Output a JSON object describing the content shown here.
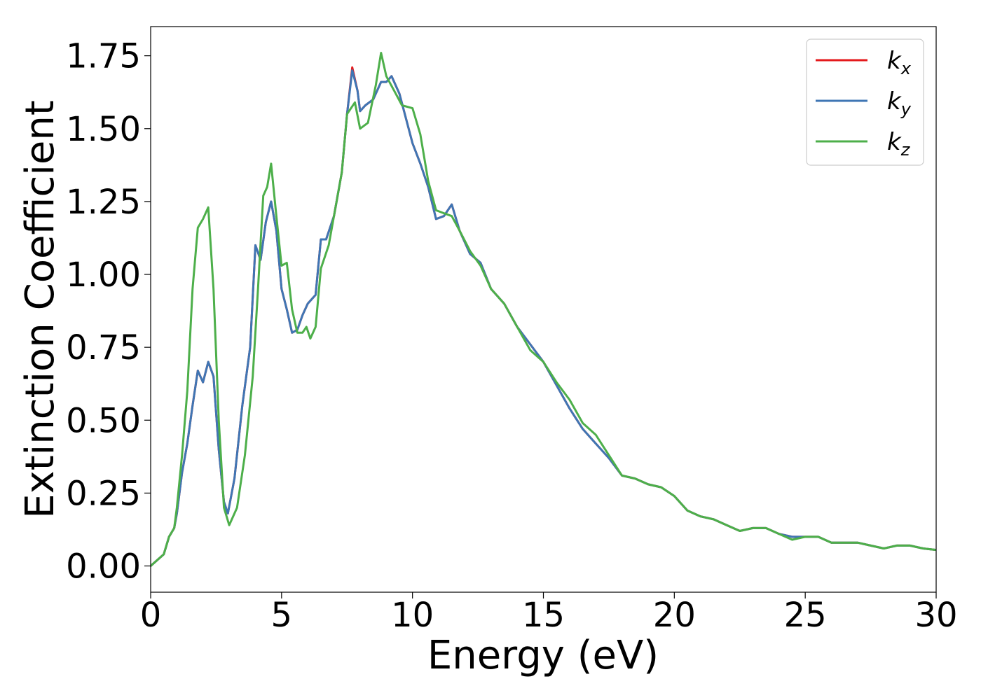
{
  "chart_data": {
    "type": "line",
    "xlabel": "Energy (eV)",
    "ylabel": "Extinction Coefficient",
    "xlim": [
      0,
      30
    ],
    "ylim": [
      -0.09,
      1.85
    ],
    "xticks": [
      0,
      5,
      10,
      15,
      20,
      25,
      30
    ],
    "xtick_labels": [
      "0",
      "5",
      "10",
      "15",
      "20",
      "25",
      "30"
    ],
    "yticks": [
      0,
      0.25,
      0.5,
      0.75,
      1.0,
      1.25,
      1.5,
      1.75
    ],
    "ytick_labels": [
      "0.00",
      "0.25",
      "0.50",
      "0.75",
      "1.00",
      "1.25",
      "1.50",
      "1.75"
    ],
    "grid": false,
    "legend_position": "top-right",
    "series": [
      {
        "name": "k",
        "subscript": "x",
        "color": "#e41a1c",
        "x": [
          0,
          0.5,
          0.7,
          0.9,
          1.0,
          1.2,
          1.4,
          1.6,
          1.8,
          2.0,
          2.2,
          2.4,
          2.6,
          2.8,
          2.95,
          3.2,
          3.5,
          3.8,
          4.0,
          4.2,
          4.4,
          4.6,
          4.8,
          5.0,
          5.2,
          5.4,
          5.6,
          5.8,
          6.0,
          6.3,
          6.5,
          6.7,
          7.0,
          7.3,
          7.5,
          7.7,
          7.9,
          8.0,
          8.2,
          8.5,
          8.8,
          9.0,
          9.2,
          9.5,
          10.0,
          10.3,
          10.6,
          10.9,
          11.2,
          11.5,
          11.8,
          12.2,
          12.6,
          13.0,
          13.5,
          14.0,
          14.5,
          15.0,
          15.5,
          16.0,
          16.5,
          17.0,
          17.5,
          18.0,
          18.5,
          19.0,
          19.5,
          20.0,
          20.5,
          21.0,
          21.5,
          22.0,
          22.5,
          23.0,
          23.5,
          24.0,
          24.5,
          25.0,
          25.5,
          26.0,
          26.5,
          27.0,
          27.5,
          28.0,
          28.5,
          29.0,
          29.5,
          30.0
        ],
        "y": [
          0.0,
          0.04,
          0.1,
          0.13,
          0.18,
          0.32,
          0.42,
          0.55,
          0.67,
          0.63,
          0.7,
          0.65,
          0.4,
          0.22,
          0.18,
          0.3,
          0.55,
          0.75,
          1.1,
          1.05,
          1.18,
          1.25,
          1.15,
          0.95,
          0.88,
          0.8,
          0.81,
          0.86,
          0.9,
          0.93,
          1.12,
          1.12,
          1.2,
          1.35,
          1.55,
          1.71,
          1.63,
          1.56,
          1.58,
          1.6,
          1.66,
          1.66,
          1.68,
          1.62,
          1.45,
          1.38,
          1.3,
          1.19,
          1.2,
          1.24,
          1.15,
          1.07,
          1.04,
          0.95,
          0.9,
          0.82,
          0.76,
          0.7,
          0.62,
          0.54,
          0.47,
          0.42,
          0.37,
          0.31,
          0.3,
          0.28,
          0.27,
          0.24,
          0.19,
          0.17,
          0.16,
          0.14,
          0.12,
          0.13,
          0.13,
          0.11,
          0.1,
          0.1,
          0.1,
          0.08,
          0.08,
          0.08,
          0.07,
          0.06,
          0.07,
          0.07,
          0.06,
          0.055
        ]
      },
      {
        "name": "k",
        "subscript": "y",
        "color": "#3f76b4",
        "x": [
          0,
          0.5,
          0.7,
          0.9,
          1.0,
          1.2,
          1.4,
          1.6,
          1.8,
          2.0,
          2.2,
          2.4,
          2.6,
          2.8,
          2.95,
          3.2,
          3.5,
          3.8,
          4.0,
          4.2,
          4.4,
          4.6,
          4.8,
          5.0,
          5.2,
          5.4,
          5.6,
          5.8,
          6.0,
          6.3,
          6.5,
          6.7,
          7.0,
          7.3,
          7.5,
          7.7,
          7.9,
          8.0,
          8.2,
          8.5,
          8.8,
          9.0,
          9.2,
          9.5,
          10.0,
          10.3,
          10.6,
          10.9,
          11.2,
          11.5,
          11.8,
          12.2,
          12.6,
          13.0,
          13.5,
          14.0,
          14.5,
          15.0,
          15.5,
          16.0,
          16.5,
          17.0,
          17.5,
          18.0,
          18.5,
          19.0,
          19.5,
          20.0,
          20.5,
          21.0,
          21.5,
          22.0,
          22.5,
          23.0,
          23.5,
          24.0,
          24.5,
          25.0,
          25.5,
          26.0,
          26.5,
          27.0,
          27.5,
          28.0,
          28.5,
          29.0,
          29.5,
          30.0
        ],
        "y": [
          0.0,
          0.04,
          0.1,
          0.13,
          0.18,
          0.32,
          0.42,
          0.55,
          0.67,
          0.63,
          0.7,
          0.65,
          0.4,
          0.22,
          0.18,
          0.3,
          0.55,
          0.75,
          1.1,
          1.05,
          1.18,
          1.25,
          1.15,
          0.95,
          0.88,
          0.8,
          0.81,
          0.86,
          0.9,
          0.93,
          1.12,
          1.12,
          1.2,
          1.35,
          1.55,
          1.7,
          1.63,
          1.56,
          1.58,
          1.6,
          1.66,
          1.66,
          1.68,
          1.62,
          1.45,
          1.38,
          1.3,
          1.19,
          1.2,
          1.24,
          1.15,
          1.07,
          1.04,
          0.95,
          0.9,
          0.82,
          0.76,
          0.7,
          0.62,
          0.54,
          0.47,
          0.42,
          0.37,
          0.31,
          0.3,
          0.28,
          0.27,
          0.24,
          0.19,
          0.17,
          0.16,
          0.14,
          0.12,
          0.13,
          0.13,
          0.11,
          0.1,
          0.1,
          0.1,
          0.08,
          0.08,
          0.08,
          0.07,
          0.06,
          0.07,
          0.07,
          0.06,
          0.055
        ]
      },
      {
        "name": "k",
        "subscript": "z",
        "color": "#4daf4a",
        "x": [
          0,
          0.5,
          0.7,
          0.9,
          1.0,
          1.2,
          1.4,
          1.6,
          1.8,
          2.0,
          2.2,
          2.4,
          2.6,
          2.8,
          3.0,
          3.3,
          3.6,
          3.9,
          4.1,
          4.3,
          4.45,
          4.6,
          4.8,
          5.0,
          5.2,
          5.4,
          5.6,
          5.8,
          5.95,
          6.1,
          6.3,
          6.5,
          6.8,
          7.0,
          7.3,
          7.5,
          7.8,
          8.0,
          8.3,
          8.6,
          8.8,
          9.0,
          9.3,
          9.6,
          10.0,
          10.3,
          10.6,
          10.9,
          11.2,
          11.5,
          11.8,
          12.2,
          12.6,
          13.0,
          13.5,
          14.0,
          14.5,
          15.0,
          15.5,
          16.0,
          16.5,
          17.0,
          17.5,
          18.0,
          18.5,
          19.0,
          19.5,
          20.0,
          20.5,
          21.0,
          21.5,
          22.0,
          22.5,
          23.0,
          23.5,
          24.0,
          24.5,
          25.0,
          25.5,
          26.0,
          26.5,
          27.0,
          27.5,
          28.0,
          28.5,
          29.0,
          29.5,
          30.0
        ],
        "y": [
          0.0,
          0.04,
          0.1,
          0.13,
          0.2,
          0.38,
          0.6,
          0.95,
          1.16,
          1.19,
          1.23,
          0.95,
          0.5,
          0.2,
          0.14,
          0.2,
          0.38,
          0.65,
          0.95,
          1.27,
          1.3,
          1.38,
          1.2,
          1.03,
          1.04,
          0.88,
          0.8,
          0.8,
          0.82,
          0.78,
          0.82,
          1.02,
          1.1,
          1.2,
          1.35,
          1.55,
          1.59,
          1.5,
          1.52,
          1.65,
          1.76,
          1.68,
          1.63,
          1.58,
          1.57,
          1.48,
          1.32,
          1.22,
          1.21,
          1.2,
          1.15,
          1.08,
          1.03,
          0.95,
          0.9,
          0.82,
          0.74,
          0.7,
          0.63,
          0.57,
          0.49,
          0.45,
          0.38,
          0.31,
          0.3,
          0.28,
          0.27,
          0.24,
          0.19,
          0.17,
          0.16,
          0.14,
          0.12,
          0.13,
          0.13,
          0.11,
          0.09,
          0.1,
          0.1,
          0.08,
          0.08,
          0.08,
          0.07,
          0.06,
          0.07,
          0.07,
          0.06,
          0.055
        ]
      }
    ]
  }
}
